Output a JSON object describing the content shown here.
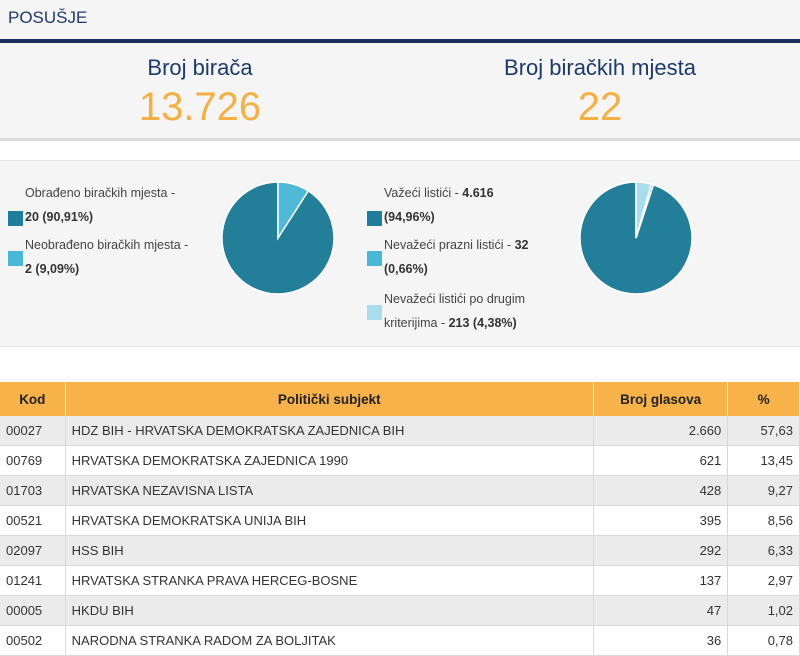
{
  "header": {
    "title": "POSUŠJE"
  },
  "stats": {
    "voters_label": "Broj birača",
    "voters_value": "13.726",
    "stations_label": "Broj biračkih mjesta",
    "stations_value": "22"
  },
  "legend_left": [
    {
      "text": "Obrađeno biračkih mjesta - ",
      "bold": "20 (90,91%)",
      "color": "#1f7e9b"
    },
    {
      "text": "Neobrađeno biračkih mjesta - ",
      "bold": "2 (9,09%)",
      "color": "#49b8d6"
    }
  ],
  "legend_right": [
    {
      "text": "Važeći listići - ",
      "bold": "4.616",
      "line2": "(94,96%)",
      "color": "#1f7e9b"
    },
    {
      "text": "Nevažeći prazni listići - ",
      "bold": "32",
      "line2": "(0,66%)",
      "color": "#49b8d6"
    },
    {
      "text": "Nevažeći listići po drugim",
      "line2_text": "kriterijima - ",
      "bold": "213 (4,38%)",
      "color": "#a9dcec"
    }
  ],
  "chart_data": [
    {
      "type": "pie",
      "values": [
        90.91,
        9.09
      ],
      "colors": [
        "#237e99",
        "#4fb9d8"
      ]
    },
    {
      "type": "pie",
      "values": [
        94.96,
        0.66,
        4.38
      ],
      "colors": [
        "#237e99",
        "#4fb9d8",
        "#a9dcec"
      ]
    }
  ],
  "table": {
    "headers": [
      "Kod",
      "Politički subjekt",
      "Broj glasova",
      "%"
    ],
    "rows": [
      [
        "00027",
        "HDZ BIH - HRVATSKA DEMOKRATSKA ZAJEDNICA BIH",
        "2.660",
        "57,63"
      ],
      [
        "00769",
        "HRVATSKA DEMOKRATSKA ZAJEDNICA 1990",
        "621",
        "13,45"
      ],
      [
        "01703",
        "HRVATSKA NEZAVISNA LISTA",
        "428",
        "9,27"
      ],
      [
        "00521",
        "HRVATSKA DEMOKRATSKA UNIJA BIH",
        "395",
        "8,56"
      ],
      [
        "02097",
        "HSS BIH",
        "292",
        "6,33"
      ],
      [
        "01241",
        "HRVATSKA STRANKA PRAVA HERCEG-BOSNE",
        "137",
        "2,97"
      ],
      [
        "00005",
        "HKDU BIH",
        "47",
        "1,02"
      ],
      [
        "00502",
        "NARODNA STRANKA RADOM ZA BOLJITAK",
        "36",
        "0,78"
      ]
    ]
  }
}
